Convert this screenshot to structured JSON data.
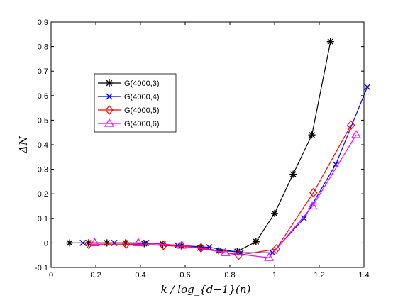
{
  "chart_data": {
    "type": "line",
    "title": "",
    "xlabel": "k / log_{d−1}(n)",
    "ylabel": "ΔN",
    "xlim": [
      0,
      1.4
    ],
    "ylim": [
      -0.1,
      0.9
    ],
    "xticks": [
      0,
      0.2,
      0.4,
      0.6,
      0.8,
      1,
      1.2,
      1.4
    ],
    "xtick_labels": [
      "0",
      "0.2",
      "0.4",
      "0.6",
      "0.8",
      "1",
      "1.2",
      "1.4"
    ],
    "yticks": [
      -0.1,
      0,
      0.1,
      0.2,
      0.3,
      0.4,
      0.5,
      0.6,
      0.7,
      0.8,
      0.9
    ],
    "ytick_labels": [
      "-0.1",
      "0",
      "0.1",
      "0.2",
      "0.3",
      "0.4",
      "0.5",
      "0.6",
      "0.7",
      "0.8",
      "0.9"
    ],
    "grid": false,
    "legend_position": "upper-left",
    "series": [
      {
        "name": "G(4000,3)",
        "color": "#000000",
        "marker": "star",
        "x": [
          0.083,
          0.167,
          0.25,
          0.333,
          0.417,
          0.5,
          0.583,
          0.667,
          0.75,
          0.833,
          0.917,
          1.0,
          1.083,
          1.167,
          1.25
        ],
        "y": [
          0.0,
          0.0,
          0.0,
          0.0,
          -0.003,
          -0.005,
          -0.012,
          -0.02,
          -0.032,
          -0.035,
          0.005,
          0.12,
          0.28,
          0.44,
          0.82
        ]
      },
      {
        "name": "G(4000,4)",
        "color": "#0000ff",
        "marker": "x",
        "x": [
          0.142,
          0.283,
          0.425,
          0.566,
          0.708,
          0.849,
          0.991,
          1.132,
          1.274,
          1.415
        ],
        "y": [
          0.0,
          0.0,
          0.0,
          -0.01,
          -0.018,
          -0.04,
          -0.04,
          0.1,
          0.32,
          0.635
        ]
      },
      {
        "name": "G(4000,5)",
        "color": "#ff0000",
        "marker": "diamond",
        "x": [
          0.168,
          0.336,
          0.503,
          0.671,
          0.839,
          1.007,
          1.174,
          1.342
        ],
        "y": [
          -0.005,
          -0.005,
          -0.01,
          -0.02,
          -0.05,
          -0.025,
          0.205,
          0.48
        ]
      },
      {
        "name": "G(4000,6)",
        "color": "#ff00ff",
        "marker": "triangle",
        "x": [
          0.195,
          0.39,
          0.585,
          0.78,
          0.975,
          1.17,
          1.365
        ],
        "y": [
          0.0,
          0.0,
          -0.01,
          -0.04,
          -0.06,
          0.15,
          0.44
        ]
      }
    ]
  }
}
